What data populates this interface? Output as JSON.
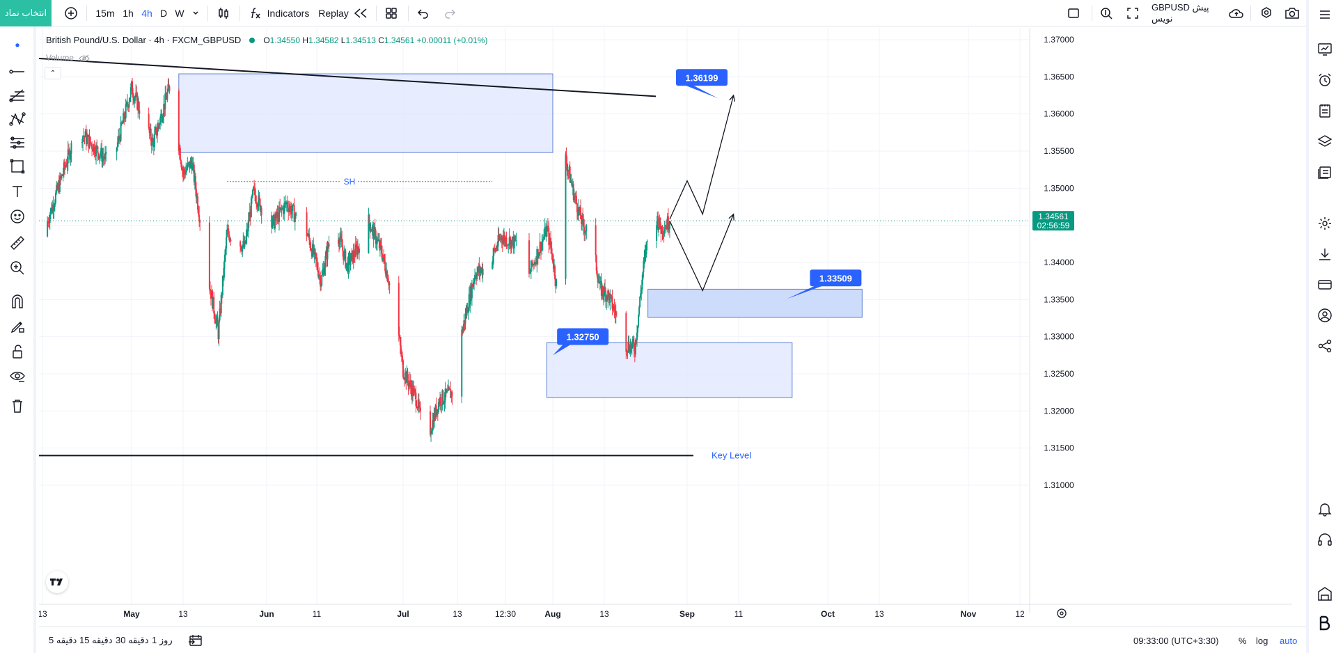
{
  "topbar": {
    "symbol_button": "انتخاب نماد",
    "add_symbol_icon": "plus-circle-icon",
    "intervals": [
      "15m",
      "1h",
      "4h",
      "D",
      "W"
    ],
    "active_interval": "4h",
    "interval_dropdown_icon": "chevron-down-icon",
    "chart_type_icon": "candles-icon",
    "indicators_label": "Indicators",
    "replay_label": "Replay",
    "layout_icon": "layout-grid-icon",
    "undo_icon": "undo-icon",
    "redo_icon": "redo-icon",
    "fullscreen_icon": "square-icon",
    "search_icon": "search-zoom-icon",
    "expand_icon": "expand-icon",
    "publish_label": "GBPUSD پیش نویس",
    "cloud_icon": "cloud-icon",
    "settings_icon": "gear-icon",
    "camera_icon": "camera-icon",
    "menu_icon": "hamburger-icon"
  },
  "legend": {
    "title": "British Pound/U.S. Dollar · 4h · FXCM_GBPUSD",
    "open_label": "O",
    "open": "1.34550",
    "high_label": "H",
    "high": "1.34582",
    "low_label": "L",
    "low": "1.34513",
    "close_label": "C",
    "close": "1.34561",
    "change": "+0.00011 (+0.01%)",
    "volume_label": "Volume"
  },
  "price_axis": {
    "ticks": [
      "1.37000",
      "1.36500",
      "1.36000",
      "1.35500",
      "1.35000",
      "1.34500",
      "1.34000",
      "1.33500",
      "1.33000",
      "1.32500",
      "1.32000",
      "1.31500",
      "1.31000"
    ],
    "current_price": "1.34561",
    "countdown": "02:56:59"
  },
  "time_axis": {
    "labels": [
      "13",
      "May",
      "13",
      "Jun",
      "11",
      "Jul",
      "13",
      "12:30",
      "Aug",
      "13",
      "Sep",
      "11",
      "Oct",
      "13",
      "Nov",
      "12"
    ]
  },
  "annotations": {
    "target_top": "1.36199",
    "target_mid": "1.33509",
    "target_low": "1.32750",
    "swing_high": "SH",
    "key_level": "Key Level"
  },
  "bottombar": {
    "ranges": [
      "5 دقیقه",
      "15 دقیقه",
      "30 دقیقه",
      "1 روز"
    ],
    "date_range_icon": "calendar-range-icon",
    "clock": "09:33:00 (UTC+3:30)",
    "percent": "%",
    "log": "log",
    "auto": "auto"
  },
  "colors": {
    "accent": "#2962ff",
    "up": "#089981",
    "down": "#f23645",
    "zone_fill": "#dfe7fd",
    "zone_border": "#5b7fd6",
    "symbol_button": "#2bbfa4"
  },
  "chart_data": {
    "type": "candlestick",
    "symbol": "FXCM_GBPUSD",
    "interval": "4h",
    "ylim": [
      1.3085,
      1.372
    ],
    "x_range": [
      "Apr 13",
      "Nov 12"
    ],
    "path_key": [
      [
        "Apr 13",
        1.3435
      ],
      [
        "Apr 20",
        1.358
      ],
      [
        "Apr 27",
        1.353
      ],
      [
        "May 1",
        1.3635
      ],
      [
        "May 6",
        1.356
      ],
      [
        "May 10",
        1.364
      ],
      [
        "May 13",
        1.352
      ],
      [
        "May 15",
        1.3535
      ],
      [
        "May 19",
        1.337
      ],
      [
        "May 21",
        1.3305
      ],
      [
        "May 23",
        1.344
      ],
      [
        "May 27",
        1.342
      ],
      [
        "May 29",
        1.3495
      ],
      [
        "Jun 2",
        1.345
      ],
      [
        "Jun 5",
        1.348
      ],
      [
        "Jun 9",
        1.344
      ],
      [
        "Jun 12",
        1.3375
      ],
      [
        "Jun 15",
        1.346
      ],
      [
        "Jun 18",
        1.3395
      ],
      [
        "Jun 21",
        1.3425
      ],
      [
        "Jun 23",
        1.3455
      ],
      [
        "Jun 26",
        1.3415
      ],
      [
        "Jun 29",
        1.3345
      ],
      [
        "Jul 1",
        1.3255
      ],
      [
        "Jul 4",
        1.3215
      ],
      [
        "Jul 6",
        1.3155
      ],
      [
        "Jul 9",
        1.3215
      ],
      [
        "Jul 12",
        1.3225
      ],
      [
        "Jul 14",
        1.3305
      ],
      [
        "Jul 17",
        1.3385
      ],
      [
        "Jul 20",
        1.3395
      ],
      [
        "Jul 23",
        1.3435
      ],
      [
        "Jul 26",
        1.3425
      ],
      [
        "Jul 28",
        1.3385
      ],
      [
        "Jul 31",
        1.3445
      ],
      [
        "Aug 2",
        1.3365
      ],
      [
        "Aug 4",
        1.354
      ],
      [
        "Aug 6",
        1.349
      ],
      [
        "Aug 8",
        1.345
      ],
      [
        "Aug 10",
        1.3435
      ],
      [
        "Aug 12",
        1.3365
      ],
      [
        "Aug 14",
        1.3355
      ],
      [
        "Aug 16",
        1.3325
      ],
      [
        "Aug 18",
        1.329
      ],
      [
        "Aug 20",
        1.3285
      ],
      [
        "Aug 22",
        1.3395
      ],
      [
        "Aug 24",
        1.3475
      ],
      [
        "Aug 26",
        1.3445
      ],
      [
        "Aug 28",
        1.3456
      ]
    ],
    "current_price": 1.34561,
    "zones": [
      {
        "name": "supply-zone",
        "from": "May 12",
        "to": "Aug 1",
        "low": 1.3548,
        "high": 1.3654
      },
      {
        "name": "demand-zone-mid",
        "from": "Aug 23",
        "to": "Oct 9",
        "low": 1.3326,
        "high": 1.3364
      },
      {
        "name": "demand-zone-low",
        "from": "Jul 31",
        "to": "Sep 23",
        "low": 1.3218,
        "high": 1.3292
      }
    ],
    "levels": [
      {
        "name": "trendline",
        "from": [
          "Apr 13",
          1.3675
        ],
        "to": [
          "Sep 1",
          1.362
        ]
      },
      {
        "name": "key-level",
        "price": 1.314,
        "label": "Key Level"
      },
      {
        "name": "swing-high",
        "price": 1.3508,
        "label": "SH"
      }
    ],
    "targets": [
      {
        "label": "1.36199",
        "price": 1.36199
      },
      {
        "label": "1.33509",
        "price": 1.33509
      },
      {
        "label": "1.32750",
        "price": 1.3275
      }
    ],
    "projection": [
      [
        [
          "Aug 28",
          1.3458
        ],
        [
          "Sep 1",
          1.351
        ],
        [
          "Sep 4",
          1.3465
        ],
        [
          "Sep 10",
          1.3625
        ]
      ],
      [
        [
          "Aug 28",
          1.3456
        ],
        [
          "Sep 4",
          1.3362
        ],
        [
          "Sep 10",
          1.3465
        ]
      ]
    ]
  }
}
